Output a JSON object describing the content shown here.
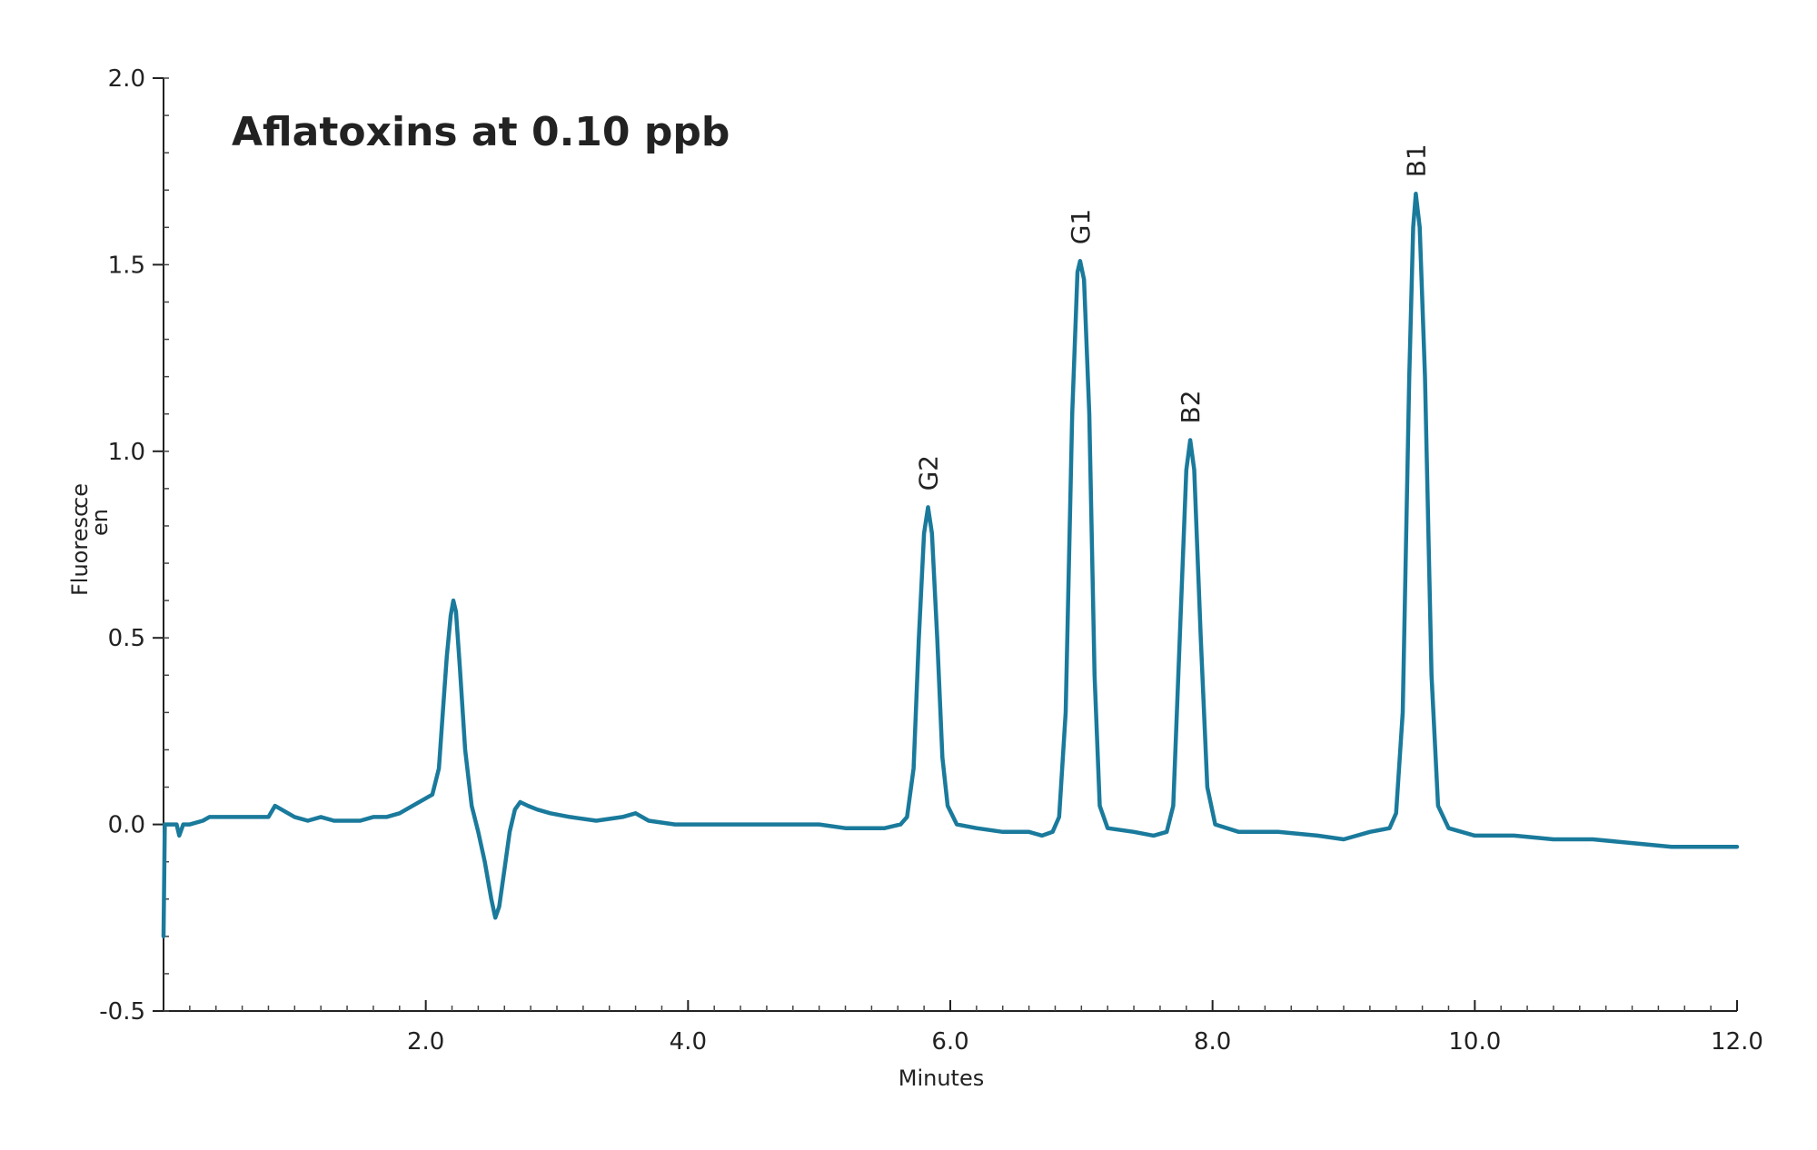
{
  "chart_data": {
    "type": "line",
    "title": "Aflatoxins at 0.10 ppb",
    "xlabel": "Minutes",
    "ylabel_main": "Fluoresc",
    "ylabel_top": "ce",
    "ylabel_bottom": "en",
    "xlim": [
      0.0,
      12.0
    ],
    "ylim": [
      -0.5,
      2.0
    ],
    "x_ticks": [
      {
        "value": 2.0,
        "label": "2.0"
      },
      {
        "value": 4.0,
        "label": "4.0"
      },
      {
        "value": 6.0,
        "label": "6.0"
      },
      {
        "value": 8.0,
        "label": "8.0"
      },
      {
        "value": 10.0,
        "label": "10.0"
      },
      {
        "value": 12.0,
        "label": "12.0"
      }
    ],
    "y_ticks": [
      {
        "value": -0.5,
        "label": "-0.5"
      },
      {
        "value": 0.0,
        "label": "0.0"
      },
      {
        "value": 0.5,
        "label": "0.5"
      },
      {
        "value": 1.0,
        "label": "1.0"
      },
      {
        "value": 1.5,
        "label": "1.5"
      },
      {
        "value": 2.0,
        "label": "2.0"
      }
    ],
    "x_minor_step": 0.2,
    "y_minor_step": 0.1,
    "grid": false,
    "line_color": "#1a7a9c",
    "peaks": [
      {
        "label": "G2",
        "x": 5.83,
        "y": 0.85
      },
      {
        "label": "G1",
        "x": 6.99,
        "y": 1.51
      },
      {
        "label": "B2",
        "x": 7.83,
        "y": 1.03
      },
      {
        "label": "B1",
        "x": 9.55,
        "y": 1.69
      }
    ],
    "series": [
      {
        "points": [
          [
            0.0,
            -0.3
          ],
          [
            0.01,
            0.0
          ],
          [
            0.05,
            0.0
          ],
          [
            0.1,
            0.0
          ],
          [
            0.12,
            -0.03
          ],
          [
            0.15,
            0.0
          ],
          [
            0.2,
            0.0
          ],
          [
            0.3,
            0.01
          ],
          [
            0.35,
            0.02
          ],
          [
            0.45,
            0.02
          ],
          [
            0.6,
            0.02
          ],
          [
            0.7,
            0.02
          ],
          [
            0.8,
            0.02
          ],
          [
            0.85,
            0.05
          ],
          [
            0.9,
            0.04
          ],
          [
            1.0,
            0.02
          ],
          [
            1.1,
            0.01
          ],
          [
            1.2,
            0.02
          ],
          [
            1.3,
            0.01
          ],
          [
            1.5,
            0.01
          ],
          [
            1.6,
            0.02
          ],
          [
            1.7,
            0.02
          ],
          [
            1.8,
            0.03
          ],
          [
            1.9,
            0.05
          ],
          [
            2.0,
            0.07
          ],
          [
            2.05,
            0.08
          ],
          [
            2.1,
            0.15
          ],
          [
            2.13,
            0.3
          ],
          [
            2.16,
            0.45
          ],
          [
            2.19,
            0.56
          ],
          [
            2.21,
            0.6
          ],
          [
            2.23,
            0.57
          ],
          [
            2.26,
            0.42
          ],
          [
            2.3,
            0.2
          ],
          [
            2.35,
            0.05
          ],
          [
            2.4,
            -0.02
          ],
          [
            2.45,
            -0.1
          ],
          [
            2.5,
            -0.2
          ],
          [
            2.53,
            -0.25
          ],
          [
            2.56,
            -0.22
          ],
          [
            2.6,
            -0.12
          ],
          [
            2.64,
            -0.02
          ],
          [
            2.68,
            0.04
          ],
          [
            2.72,
            0.06
          ],
          [
            2.78,
            0.05
          ],
          [
            2.85,
            0.04
          ],
          [
            2.95,
            0.03
          ],
          [
            3.1,
            0.02
          ],
          [
            3.3,
            0.01
          ],
          [
            3.5,
            0.02
          ],
          [
            3.6,
            0.03
          ],
          [
            3.7,
            0.01
          ],
          [
            3.9,
            0.0
          ],
          [
            4.1,
            0.0
          ],
          [
            4.5,
            0.0
          ],
          [
            5.0,
            0.0
          ],
          [
            5.2,
            -0.01
          ],
          [
            5.5,
            -0.01
          ],
          [
            5.62,
            0.0
          ],
          [
            5.67,
            0.02
          ],
          [
            5.72,
            0.15
          ],
          [
            5.76,
            0.5
          ],
          [
            5.8,
            0.78
          ],
          [
            5.83,
            0.85
          ],
          [
            5.86,
            0.78
          ],
          [
            5.9,
            0.5
          ],
          [
            5.94,
            0.18
          ],
          [
            5.98,
            0.05
          ],
          [
            6.05,
            0.0
          ],
          [
            6.2,
            -0.01
          ],
          [
            6.4,
            -0.02
          ],
          [
            6.6,
            -0.02
          ],
          [
            6.7,
            -0.03
          ],
          [
            6.78,
            -0.02
          ],
          [
            6.83,
            0.02
          ],
          [
            6.88,
            0.3
          ],
          [
            6.93,
            1.1
          ],
          [
            6.97,
            1.48
          ],
          [
            6.99,
            1.51
          ],
          [
            7.02,
            1.46
          ],
          [
            7.06,
            1.1
          ],
          [
            7.1,
            0.4
          ],
          [
            7.14,
            0.05
          ],
          [
            7.2,
            -0.01
          ],
          [
            7.4,
            -0.02
          ],
          [
            7.55,
            -0.03
          ],
          [
            7.65,
            -0.02
          ],
          [
            7.7,
            0.05
          ],
          [
            7.75,
            0.5
          ],
          [
            7.8,
            0.95
          ],
          [
            7.83,
            1.03
          ],
          [
            7.86,
            0.95
          ],
          [
            7.91,
            0.5
          ],
          [
            7.96,
            0.1
          ],
          [
            8.02,
            0.0
          ],
          [
            8.2,
            -0.02
          ],
          [
            8.5,
            -0.02
          ],
          [
            8.8,
            -0.03
          ],
          [
            9.0,
            -0.04
          ],
          [
            9.2,
            -0.02
          ],
          [
            9.35,
            -0.01
          ],
          [
            9.4,
            0.03
          ],
          [
            9.45,
            0.3
          ],
          [
            9.5,
            1.2
          ],
          [
            9.53,
            1.6
          ],
          [
            9.55,
            1.69
          ],
          [
            9.58,
            1.6
          ],
          [
            9.62,
            1.2
          ],
          [
            9.67,
            0.4
          ],
          [
            9.72,
            0.05
          ],
          [
            9.8,
            -0.01
          ],
          [
            10.0,
            -0.03
          ],
          [
            10.3,
            -0.03
          ],
          [
            10.6,
            -0.04
          ],
          [
            10.9,
            -0.04
          ],
          [
            11.2,
            -0.05
          ],
          [
            11.5,
            -0.06
          ],
          [
            11.8,
            -0.06
          ],
          [
            12.0,
            -0.06
          ]
        ]
      }
    ]
  }
}
